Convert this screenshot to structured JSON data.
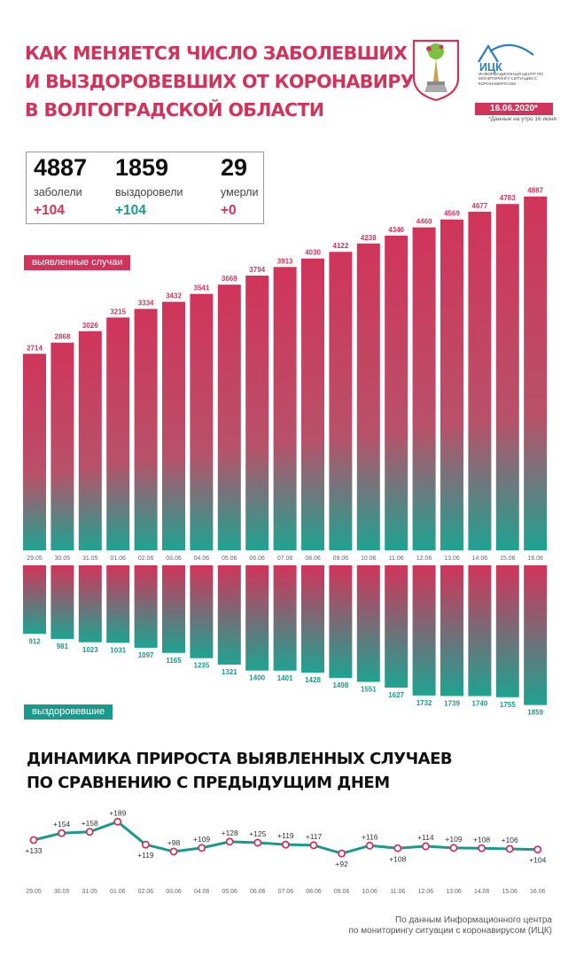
{
  "header": {
    "title_lines": [
      "Как меняется число заболевших",
      "и выздоровевших от коронавируса",
      "в Волгоградской области"
    ],
    "logo_text": "ИЦК",
    "logo_subtitle": "Информационный центр по мониторингу ситуации с коронавирусом",
    "date": "16.06.2020*",
    "date_note": "*Данные на утро 16 июня"
  },
  "stats": [
    {
      "value": "4887",
      "label": "заболели",
      "delta": "+104",
      "color": "#d1345b"
    },
    {
      "value": "1859",
      "label": "выздоровели",
      "delta": "+104",
      "color": "#1a9a8c"
    },
    {
      "value": "29",
      "label": "умерли",
      "delta": "+0",
      "color": "#d1345b"
    }
  ],
  "labels": {
    "cases": "выявленные случаи",
    "recovered": "выздоровевшие",
    "dynamics_title": [
      "Динамика прироста выявленных случаев",
      "по сравнению с предыдущим днем"
    ],
    "source": [
      "По данным Информационного центра",
      "по мониторингу ситуации с коронавирусом (ИЦК)"
    ]
  },
  "colors": {
    "pink": "#d1345b",
    "teal": "#1a9a8c"
  },
  "chart_data": [
    {
      "type": "bar",
      "categories": [
        "29.05",
        "30.05",
        "31.05",
        "01.06",
        "02.06",
        "03.06",
        "04.06",
        "05.06",
        "06.06",
        "07.06",
        "08.06",
        "09.06",
        "10.06",
        "11.06",
        "12.06",
        "13.06",
        "14.06",
        "15.06",
        "16.06"
      ],
      "series": [
        {
          "name": "выявленные случаи",
          "values": [
            2714,
            2868,
            3026,
            3215,
            3334,
            3432,
            3541,
            3669,
            3794,
            3913,
            4030,
            4122,
            4238,
            4346,
            4460,
            4569,
            4677,
            4783,
            4887
          ]
        },
        {
          "name": "выздоровевшие",
          "values": [
            912,
            981,
            1023,
            1031,
            1097,
            1165,
            1235,
            1321,
            1400,
            1401,
            1428,
            1498,
            1551,
            1627,
            1732,
            1739,
            1740,
            1755,
            1859
          ]
        }
      ]
    },
    {
      "type": "line",
      "categories": [
        "29.05",
        "30.05",
        "31.05",
        "01.06",
        "02.06",
        "03.06",
        "04.06",
        "05.06",
        "06.06",
        "07.06",
        "08.06",
        "09.06",
        "10.06",
        "11.06",
        "12.06",
        "13.06",
        "14.06",
        "15.06",
        "16.06"
      ],
      "series": [
        {
          "values": [
            133,
            154,
            158,
            189,
            119,
            98,
            109,
            128,
            125,
            119,
            117,
            92,
            116,
            108,
            114,
            109,
            108,
            106,
            104
          ]
        }
      ],
      "point_labels": [
        "+133",
        "+154",
        "+158",
        "+189",
        "+119",
        "+98",
        "+109",
        "+128",
        "+125",
        "+119",
        "+117",
        "+92",
        "+116",
        "+108",
        "+114",
        "+109",
        "+108",
        "+106",
        "+104"
      ]
    }
  ]
}
